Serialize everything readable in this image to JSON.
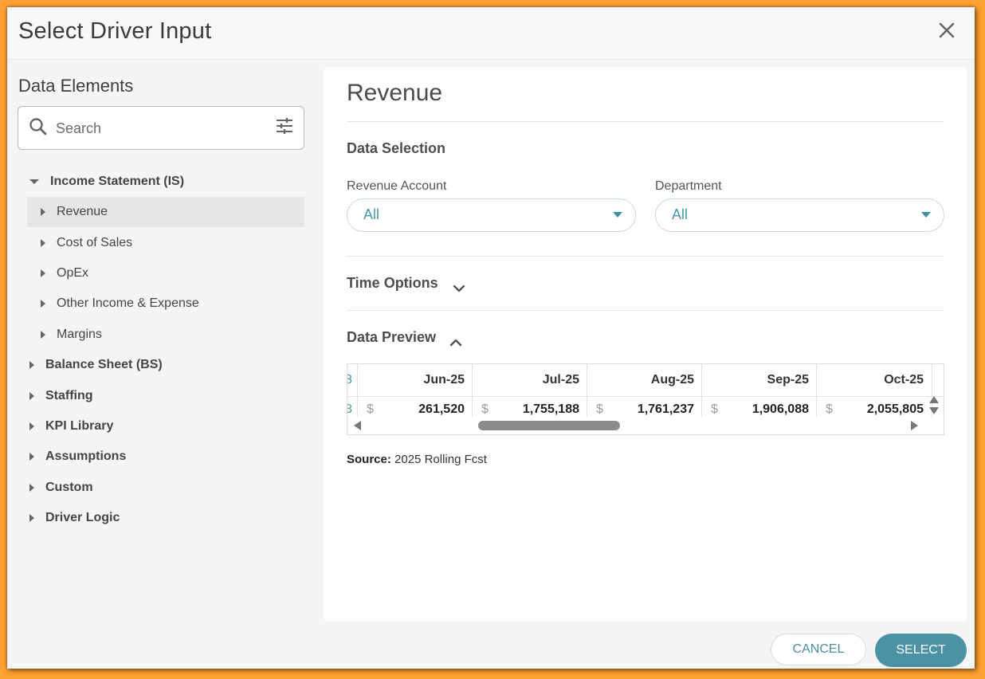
{
  "dialog": {
    "title": "Select Driver Input",
    "close_icon": "close-icon"
  },
  "left_panel": {
    "title": "Data Elements",
    "search": {
      "placeholder": "Search",
      "value": ""
    },
    "tree": [
      {
        "label": "Income Statement (IS)",
        "level": 0,
        "expanded": true
      },
      {
        "label": "Revenue",
        "level": 1,
        "selected": true
      },
      {
        "label": "Cost of Sales",
        "level": 1
      },
      {
        "label": "OpEx",
        "level": 1
      },
      {
        "label": "Other Income & Expense",
        "level": 1
      },
      {
        "label": "Margins",
        "level": 1
      },
      {
        "label": "Balance Sheet (BS)",
        "level": 0
      },
      {
        "label": "Staffing",
        "level": 0
      },
      {
        "label": "KPI Library",
        "level": 0
      },
      {
        "label": "Assumptions",
        "level": 0
      },
      {
        "label": "Custom",
        "level": 0
      },
      {
        "label": "Driver Logic",
        "level": 0
      }
    ]
  },
  "right_panel": {
    "title": "Revenue",
    "data_selection": {
      "label": "Data Selection",
      "revenue_account": {
        "label": "Revenue Account",
        "value": "All"
      },
      "department": {
        "label": "Department",
        "value": "All"
      }
    },
    "time_options": {
      "label": "Time Options",
      "expanded": false
    },
    "data_preview": {
      "label": "Data Preview",
      "expanded": true,
      "currency_symbol": "$",
      "columns": [
        {
          "header": "Jun-25",
          "value": "261,520"
        },
        {
          "header": "Jul-25",
          "value": "1,755,188"
        },
        {
          "header": "Aug-25",
          "value": "1,761,237"
        },
        {
          "header": "Sep-25",
          "value": "1,906,088"
        },
        {
          "header": "Oct-25",
          "value": "2,055,805"
        }
      ]
    },
    "source": {
      "label": "Source:",
      "value": "2025 Rolling Fcst"
    }
  },
  "footer": {
    "cancel_label": "CANCEL",
    "select_label": "SELECT"
  },
  "colors": {
    "accent": "#4a92a4",
    "frame": "#ffa032"
  }
}
